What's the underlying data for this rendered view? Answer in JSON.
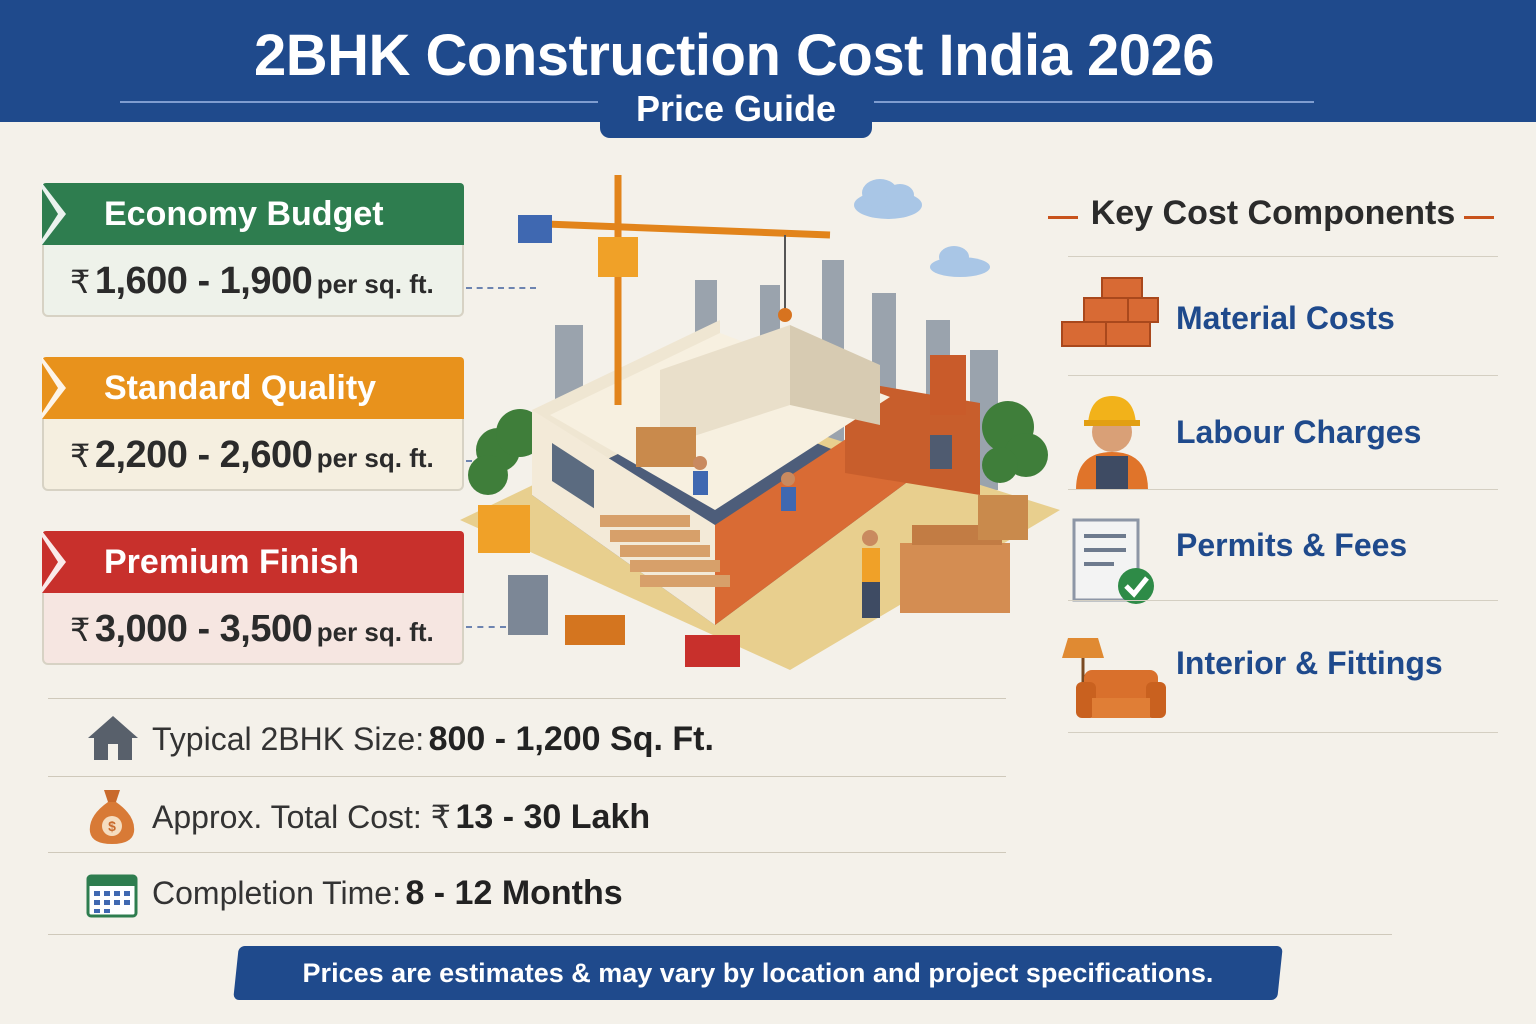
{
  "header": {
    "title": "2BHK Construction Cost India 2026",
    "subtitle": "Price Guide",
    "color": "#1f4a8c"
  },
  "tiers": [
    {
      "name": "Economy Budget",
      "currency": "₹",
      "range": "1,600 - 1,900",
      "unit": "per sq. ft.",
      "color": "#2e7d4f"
    },
    {
      "name": "Standard Quality",
      "currency": "₹",
      "range": "2,200 - 2,600",
      "unit": "per sq. ft.",
      "color": "#e8921c"
    },
    {
      "name": "Premium Finish",
      "currency": "₹",
      "range": "3,000 - 3,500",
      "unit": "per sq. ft.",
      "color": "#c8302c"
    }
  ],
  "key_components": {
    "title": "Key Cost Components",
    "items": [
      {
        "label": "Material Costs",
        "icon": "bricks-icon"
      },
      {
        "label": "Labour Charges",
        "icon": "worker-icon"
      },
      {
        "label": "Permits & Fees",
        "icon": "document-check-icon"
      },
      {
        "label": "Interior & Fittings",
        "icon": "armchair-lamp-icon"
      }
    ]
  },
  "facts": [
    {
      "label": "Typical 2BHK Size:",
      "value": "800 - 1,200 Sq. Ft.",
      "icon": "house-icon"
    },
    {
      "label": "Approx. Total Cost: ₹",
      "value": "13 - 30 Lakh",
      "icon": "money-bag-icon"
    },
    {
      "label": "Completion Time:",
      "value": "8 - 12 Months",
      "icon": "calendar-icon"
    }
  ],
  "footer": {
    "text": "Prices are estimates & may vary by location and project specifications."
  }
}
